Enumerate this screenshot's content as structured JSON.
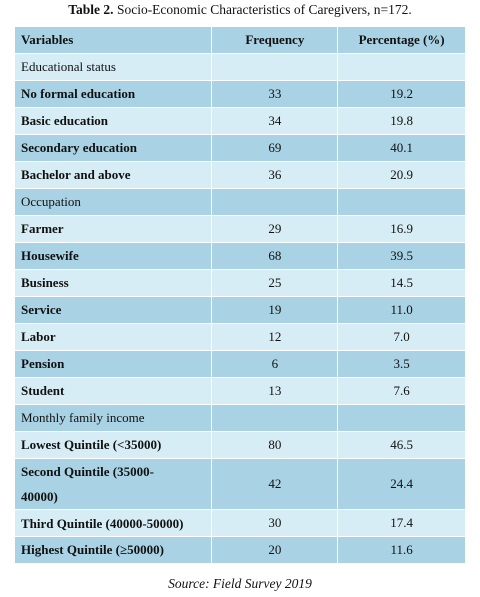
{
  "table_label": "Table 2.",
  "title": "Socio-Economic Characteristics of Caregivers, n=172.",
  "header": [
    "Variables",
    "Frequency",
    "Percentage (%)"
  ],
  "rows": [
    {
      "label": "Educational status"
    },
    {
      "label": "No formal education",
      "frequency": "33",
      "percentage": "19.2"
    },
    {
      "label": "Basic education",
      "frequency": "34",
      "percentage": "19.8"
    },
    {
      "label": "Secondary education",
      "frequency": "69",
      "percentage": "40.1"
    },
    {
      "label": "Bachelor and above",
      "frequency": "36",
      "percentage": "20.9"
    },
    {
      "label": "Occupation"
    },
    {
      "label": "Farmer",
      "frequency": "29",
      "percentage": "16.9"
    },
    {
      "label": "Housewife",
      "frequency": "68",
      "percentage": "39.5"
    },
    {
      "label": "Business",
      "frequency": "25",
      "percentage": "14.5"
    },
    {
      "label": "Service",
      "frequency": "19",
      "percentage": "11.0"
    },
    {
      "label": "Labor",
      "frequency": "12",
      "percentage": "7.0"
    },
    {
      "label": "Pension",
      "frequency": "6",
      "percentage": "3.5"
    },
    {
      "label": "Student",
      "frequency": "13",
      "percentage": "7.6"
    },
    {
      "label": "Monthly family income"
    },
    {
      "label": "Lowest Quintile (<35000)",
      "frequency": "80",
      "percentage": "46.5"
    },
    {
      "label": "Second Quintile (35000-40000)",
      "frequency": "42",
      "percentage": "24.4"
    },
    {
      "label": "Third Quintile (40000-50000)",
      "frequency": "30",
      "percentage": "17.4"
    },
    {
      "label": "Highest Quintile (≥50000)",
      "frequency": "20",
      "percentage": "11.6"
    }
  ],
  "source": "Source: Field Survey 2019"
}
